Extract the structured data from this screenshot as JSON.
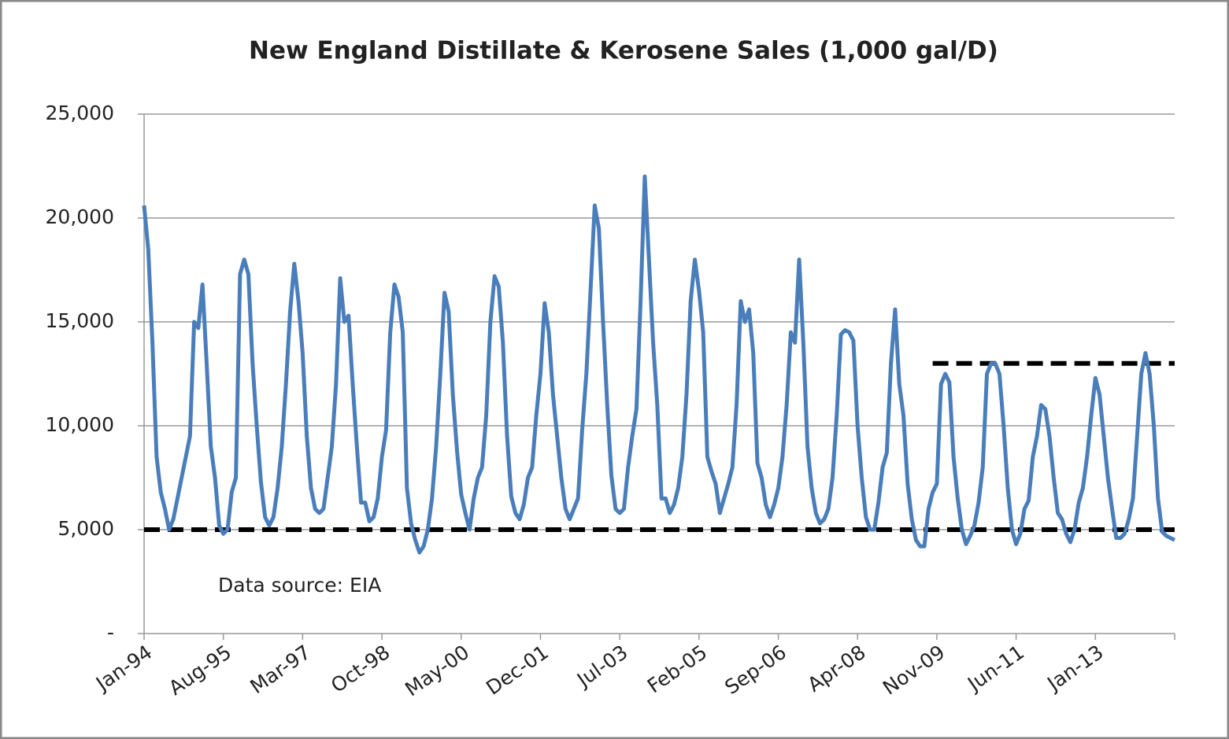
{
  "chart_data": {
    "type": "line",
    "title": "New England Distillate & Kerosene Sales (1,000 gal/D)",
    "annotation": "Data source:  EIA",
    "categories": [
      "Jan-94",
      null,
      null,
      null,
      null,
      null,
      null,
      null,
      null,
      null,
      null,
      null,
      null,
      null,
      null,
      null,
      null,
      null,
      null,
      "Aug-95",
      null,
      null,
      null,
      null,
      null,
      null,
      null,
      null,
      null,
      null,
      null,
      null,
      null,
      null,
      null,
      null,
      null,
      null,
      "Mar-97",
      null,
      null,
      null,
      null,
      null,
      null,
      null,
      null,
      null,
      null,
      null,
      null,
      null,
      null,
      null,
      null,
      null,
      null,
      "Oct-98",
      null,
      null,
      null,
      null,
      null,
      null,
      null,
      null,
      null,
      null,
      null,
      null,
      null,
      null,
      null,
      null,
      null,
      null,
      "May-00",
      null,
      null,
      null,
      null,
      null,
      null,
      null,
      null,
      null,
      null,
      null,
      null,
      null,
      null,
      null,
      null,
      null,
      null,
      "Dec-01",
      null,
      null,
      null,
      null,
      null,
      null,
      null,
      null,
      null,
      null,
      null,
      null,
      null,
      null,
      null,
      null,
      null,
      null,
      "Jul-03",
      null,
      null,
      null,
      null,
      null,
      null,
      null,
      null,
      null,
      null,
      null,
      null,
      null,
      null,
      null,
      null,
      null,
      null,
      "Feb-05",
      null,
      null,
      null,
      null,
      null,
      null,
      null,
      null,
      null,
      null,
      null,
      null,
      null,
      null,
      null,
      null,
      null,
      null,
      "Sep-06",
      null,
      null,
      null,
      null,
      null,
      null,
      null,
      null,
      null,
      null,
      null,
      null,
      null,
      null,
      null,
      null,
      null,
      null,
      "Apr-08",
      null,
      null,
      null,
      null,
      null,
      null,
      null,
      null,
      null,
      null,
      null,
      null,
      null,
      null,
      null,
      null,
      null,
      null,
      "Nov-09",
      null,
      null,
      null,
      null,
      null,
      null,
      null,
      null,
      null,
      null,
      null,
      null,
      null,
      null,
      null,
      null,
      null,
      null,
      "Jun-11",
      null,
      null,
      null,
      null,
      null,
      null,
      null,
      null,
      null,
      null,
      null,
      null,
      null,
      null,
      null,
      null,
      null,
      null,
      "Jan-13",
      null,
      null,
      null,
      null,
      null,
      null,
      null,
      null,
      null,
      null,
      null,
      null,
      null,
      null,
      null,
      null,
      null,
      null,
      null
    ],
    "series": [
      {
        "color": "#4a7ebb",
        "values": [
          20600,
          18500,
          14000,
          8500,
          6800,
          6000,
          5000,
          5500,
          6500,
          7500,
          8500,
          9500,
          15000,
          14700,
          16800,
          13000,
          9000,
          7500,
          5200,
          4800,
          5000,
          6800,
          7500,
          17300,
          18000,
          17300,
          13000,
          10000,
          7300,
          5600,
          5200,
          5600,
          7000,
          9000,
          12000,
          15500,
          17800,
          16000,
          13500,
          9500,
          7000,
          6000,
          5800,
          6000,
          7500,
          9000,
          12000,
          17100,
          15000,
          15300,
          12000,
          9000,
          6300,
          6300,
          5400,
          5600,
          6500,
          8500,
          9800,
          14500,
          16800,
          16200,
          14500,
          7000,
          5300,
          4500,
          3900,
          4200,
          5000,
          6500,
          9000,
          12500,
          16400,
          15500,
          11500,
          8800,
          6700,
          5800,
          5000,
          6500,
          7500,
          8000,
          10500,
          15000,
          17200,
          16700,
          14000,
          9500,
          6600,
          5800,
          5500,
          6200,
          7500,
          8000,
          10500,
          12500,
          15900,
          14500,
          11500,
          9500,
          7500,
          6000,
          5500,
          6000,
          6500,
          9800,
          12500,
          16500,
          20600,
          19500,
          15000,
          11000,
          7600,
          6000,
          5800,
          6000,
          8000,
          9500,
          10800,
          16000,
          22000,
          18000,
          14000,
          11000,
          6500,
          6500,
          5800,
          6200,
          7000,
          8500,
          11500,
          16000,
          18000,
          16500,
          14500,
          8500,
          7800,
          7200,
          5800,
          6500,
          7200,
          8000,
          11000,
          16000,
          15000,
          15600,
          13500,
          8200,
          7500,
          6200,
          5600,
          6200,
          7000,
          8500,
          11000,
          14500,
          14000,
          18000,
          14000,
          9000,
          7000,
          5800,
          5300,
          5500,
          6000,
          7500,
          10500,
          14400,
          14600,
          14500,
          14100,
          10000,
          7500,
          5600,
          5000,
          5000,
          6300,
          8000,
          8700,
          13000,
          15600,
          12000,
          10500,
          7200,
          5500,
          4500,
          4200,
          4200,
          6000,
          6800,
          7200,
          12000,
          12500,
          12100,
          8500,
          6500,
          5000,
          4300,
          4700,
          5200,
          6300,
          8000,
          12500,
          13000,
          13000,
          12500,
          10000,
          7000,
          5000,
          4300,
          4800,
          6000,
          6400,
          8500,
          9500,
          11000,
          10800,
          9500,
          7500,
          5800,
          5500,
          4800,
          4400,
          5000,
          6300,
          7000,
          8500,
          10500,
          12300,
          11500,
          9500,
          7500,
          6000,
          4600,
          4600,
          4800,
          5500,
          6500,
          9500,
          12500,
          13500,
          12500,
          10000,
          6500,
          4900,
          4700,
          4600,
          4500
        ]
      }
    ],
    "reference_lines": [
      {
        "y": 5000,
        "x_start": 0,
        "x_end": 247,
        "color": "#000000"
      },
      {
        "y": 13000,
        "x_start": 189,
        "x_end": 247,
        "color": "#000000"
      }
    ],
    "ylim": [
      0,
      25000
    ],
    "yticks": [
      {
        "value": 0,
        "label": "-"
      },
      {
        "value": 5000,
        "label": "5,000"
      },
      {
        "value": 10000,
        "label": "10,000"
      },
      {
        "value": 15000,
        "label": "15,000"
      },
      {
        "value": 20000,
        "label": "20,000"
      },
      {
        "value": 25000,
        "label": "25,000"
      }
    ],
    "grid": true
  }
}
